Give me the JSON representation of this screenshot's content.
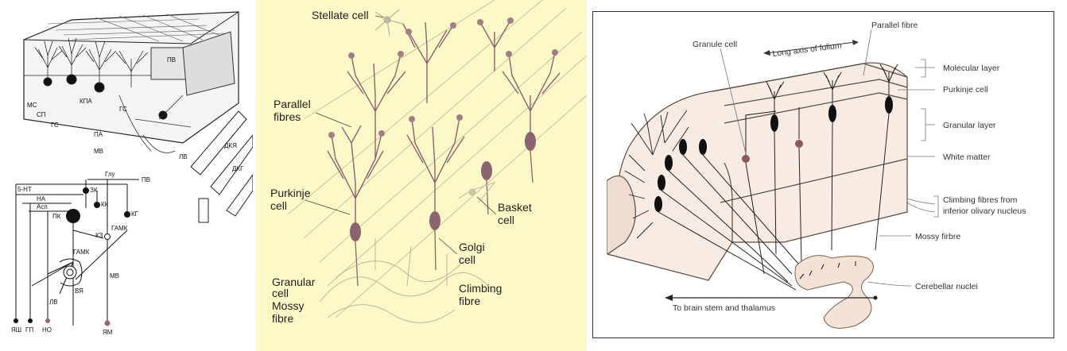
{
  "panel_a": {
    "top_labels": {
      "mc": "МС",
      "sp": "СП",
      "gs": "ГС",
      "kpa": "КПА",
      "pa": "ПА",
      "mv": "МВ",
      "gs2": "ГС",
      "pv": "ПВ",
      "lv": "ЛВ",
      "dkya": "ДКЯ",
      "dkg": "ДКГ"
    },
    "circuit_labels": {
      "glu": "Глу",
      "pv": "ПВ",
      "ht5": "5-НТ",
      "na": "НА",
      "asp": "Асп",
      "pk": "ПК",
      "zk": "ЗК",
      "kk": "КК",
      "kg": "КГ",
      "kz": "КЗ",
      "gamk1": "ГАМК",
      "gamk2": "ГАМК",
      "mv": "МВ",
      "lv": "ЛВ",
      "vya": "ВЯ",
      "yash": "ЯШ",
      "gp": "ГП",
      "no": "НО",
      "yam": "ЯМ"
    }
  },
  "panel_b": {
    "labels": {
      "stellate": "Stellate cell",
      "parallel_1": "Parallel",
      "parallel_2": "fibres",
      "purkinje_1": "Purkinje",
      "purkinje_2": "cell",
      "basket_1": "Basket",
      "basket_2": "cell",
      "golgi_1": "Golgi",
      "golgi_2": "cell",
      "granular_1": "Granular",
      "granular_2": "cell",
      "mossy_1": "Mossy",
      "mossy_2": "fibre",
      "climbing_1": "Climbing",
      "climbing_2": "fibre"
    }
  },
  "panel_c": {
    "labels": {
      "granule_cell": "Granule cell",
      "parallel_fibre": "Parallel fibre",
      "long_axis": "Long axis of folium",
      "molecular_layer": "Molecular layer",
      "purkinje_cell": "Purkinje cell",
      "granular_layer": "Granular layer",
      "white_matter": "White matter",
      "climbing_1": "Climbing fibres from",
      "climbing_2": "inferior olivary nucleus",
      "mossy_fibre": "Mossy firbre",
      "cerebellar_nuclei": "Cerebellar nuclei",
      "brain_stem": "To brain stem and thalamus"
    }
  }
}
